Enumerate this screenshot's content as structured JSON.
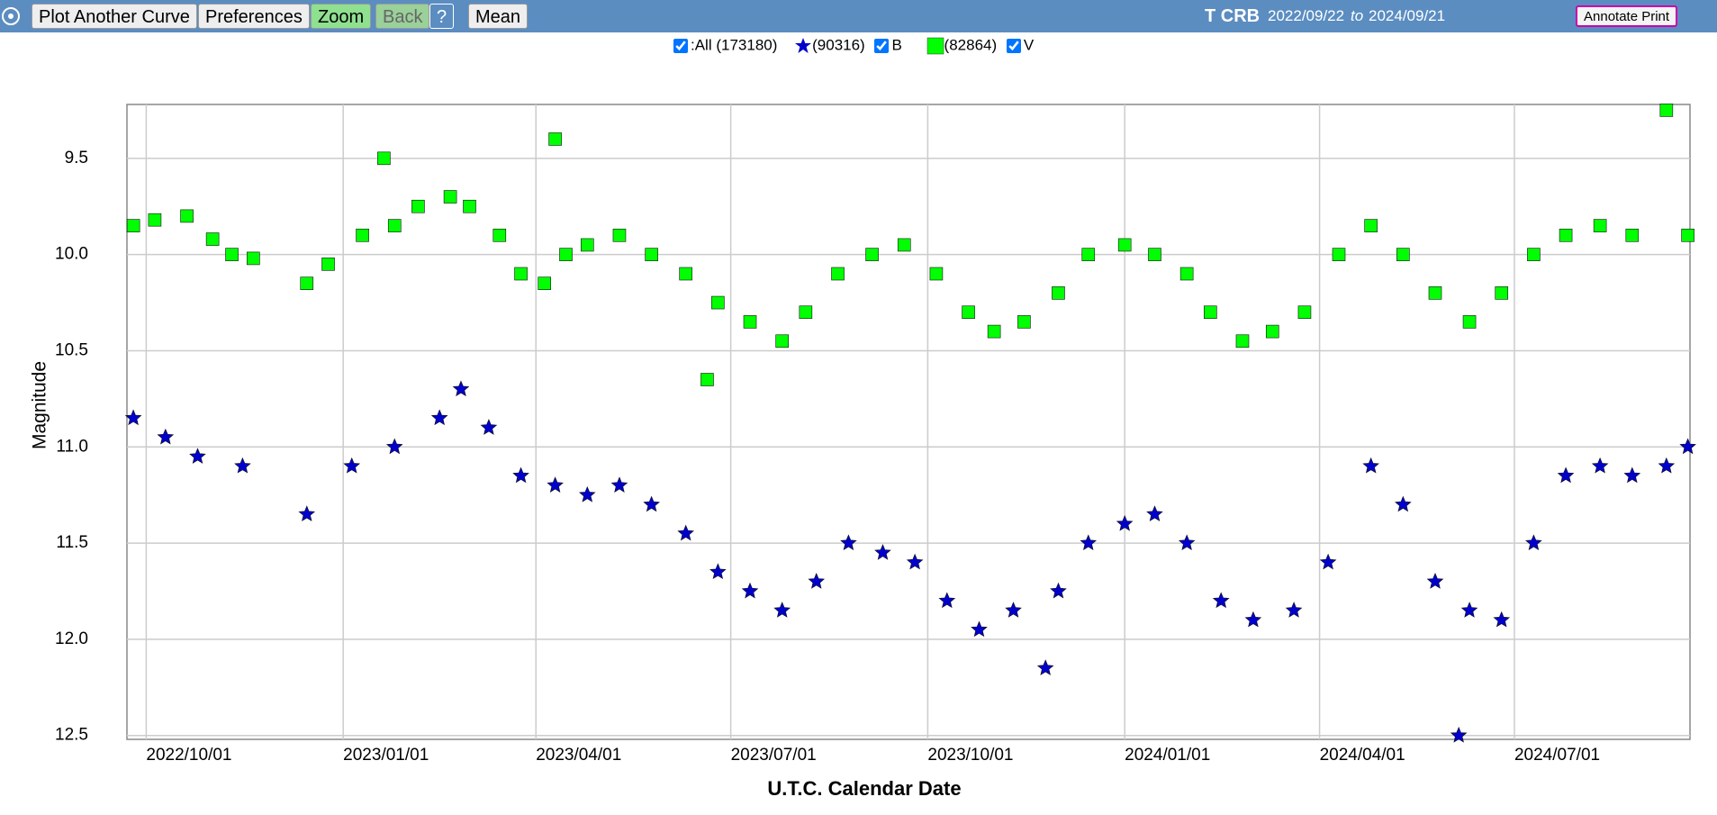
{
  "toolbar": {
    "buttons": [
      "Plot Another Curve",
      "Preferences",
      "Zoom",
      "Back",
      "?",
      "Mean"
    ],
    "object": "T CRB",
    "start": "2022/09/22",
    "to": "to",
    "end": "2024/09/21",
    "annotate": "Annotate Print"
  },
  "legend": {
    "all": ":All (173180)"
  },
  "chart_data": {
    "type": "scatter",
    "x_label": "U.T.C. Calendar Date",
    "y_label": "Magnitude",
    "invert_y": true,
    "grid": true,
    "xlim": [
      "2022/09/22",
      "2024/09/21"
    ],
    "xticks": [
      "2022/10/01",
      "2023/01/01",
      "2023/04/01",
      "2023/07/01",
      "2023/10/01",
      "2024/01/01",
      "2024/04/01",
      "2024/07/01"
    ],
    "ylim": [
      9.22,
      12.52
    ],
    "yticks": [
      9.5,
      {
        "value": 10,
        "label": "10.0"
      },
      10.5,
      {
        "value": 11,
        "label": "11.0"
      },
      11.5,
      {
        "value": 12,
        "label": "12.0"
      },
      12.5
    ],
    "series": [
      {
        "name": "B",
        "count_label": "(90316)",
        "color": "#0000cc",
        "marker": "star",
        "x": [
          "2022/09/25",
          "2022/10/10",
          "2022/10/25",
          "2022/11/15",
          "2022/12/15",
          "2023/01/05",
          "2023/01/25",
          "2023/02/15",
          "2023/02/25",
          "2023/03/10",
          "2023/03/25",
          "2023/04/10",
          "2023/04/25",
          "2023/05/10",
          "2023/05/25",
          "2023/06/10",
          "2023/06/25",
          "2023/07/10",
          "2023/07/25",
          "2023/08/10",
          "2023/08/25",
          "2023/09/10",
          "2023/09/25",
          "2023/10/10",
          "2023/10/25",
          "2023/11/10",
          "2023/11/25",
          "2023/12/01",
          "2023/12/15",
          "2024/01/01",
          "2024/01/15",
          "2024/01/30",
          "2024/02/15",
          "2024/03/01",
          "2024/03/20",
          "2024/04/05",
          "2024/04/25",
          "2024/05/10",
          "2024/05/25",
          "2024/06/05",
          "2024/06/10",
          "2024/06/25",
          "2024/07/10",
          "2024/07/25",
          "2024/08/10",
          "2024/08/25",
          "2024/09/10",
          "2024/09/20"
        ],
        "values": [
          10.85,
          10.95,
          11.05,
          11.1,
          11.35,
          11.1,
          11.0,
          10.85,
          10.7,
          10.9,
          11.15,
          11.2,
          11.25,
          11.2,
          11.3,
          11.45,
          11.65,
          11.75,
          11.85,
          11.7,
          11.5,
          11.55,
          11.6,
          11.8,
          11.95,
          11.85,
          12.15,
          11.75,
          11.5,
          11.4,
          11.35,
          11.5,
          11.8,
          11.9,
          11.85,
          11.6,
          11.1,
          11.3,
          11.7,
          12.5,
          11.85,
          11.9,
          11.5,
          11.15,
          11.1,
          11.15,
          11.1,
          11.0
        ]
      },
      {
        "name": "V",
        "count_label": "(82864)",
        "color": "#00ff00",
        "marker": "square",
        "x": [
          "2022/09/25",
          "2022/10/05",
          "2022/10/20",
          "2022/11/01",
          "2022/11/10",
          "2022/11/20",
          "2022/12/15",
          "2022/12/25",
          "2023/01/10",
          "2023/01/20",
          "2023/01/25",
          "2023/02/05",
          "2023/02/20",
          "2023/03/01",
          "2023/03/15",
          "2023/03/25",
          "2023/04/05",
          "2023/04/10",
          "2023/04/15",
          "2023/04/25",
          "2023/05/10",
          "2023/05/25",
          "2023/06/10",
          "2023/06/20",
          "2023/06/25",
          "2023/07/10",
          "2023/07/25",
          "2023/08/05",
          "2023/08/20",
          "2023/09/05",
          "2023/09/20",
          "2023/10/05",
          "2023/10/20",
          "2023/11/01",
          "2023/11/15",
          "2023/12/01",
          "2023/12/15",
          "2024/01/01",
          "2024/01/15",
          "2024/01/30",
          "2024/02/10",
          "2024/02/25",
          "2024/03/10",
          "2024/03/25",
          "2024/04/10",
          "2024/04/25",
          "2024/05/10",
          "2024/05/25",
          "2024/06/10",
          "2024/06/25",
          "2024/07/10",
          "2024/07/25",
          "2024/08/10",
          "2024/08/25",
          "2024/09/10",
          "2024/09/20"
        ],
        "values": [
          9.85,
          9.82,
          9.8,
          9.92,
          10.0,
          10.02,
          10.15,
          10.05,
          9.9,
          9.5,
          9.85,
          9.75,
          9.7,
          9.75,
          9.9,
          10.1,
          10.15,
          9.4,
          10.0,
          9.95,
          9.9,
          10.0,
          10.1,
          10.65,
          10.25,
          10.35,
          10.45,
          10.3,
          10.1,
          10.0,
          9.95,
          10.1,
          10.3,
          10.4,
          10.35,
          10.2,
          10.0,
          9.95,
          10.0,
          10.1,
          10.3,
          10.45,
          10.4,
          10.3,
          10.0,
          9.85,
          10.0,
          10.2,
          10.35,
          10.2,
          10.0,
          9.9,
          9.85,
          9.9,
          9.25,
          9.9
        ]
      }
    ]
  }
}
